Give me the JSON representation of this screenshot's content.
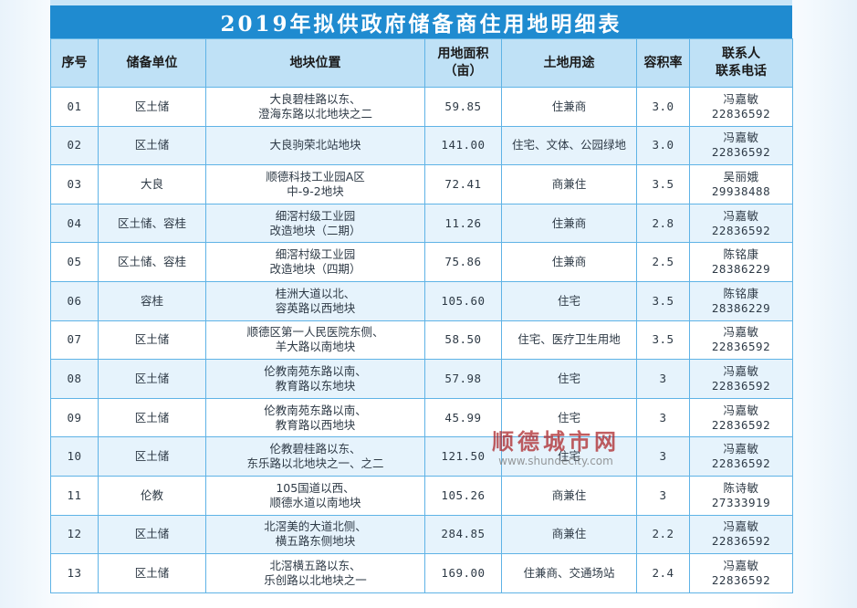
{
  "title": "2019年拟供政府储备商住用地明细表",
  "headers": {
    "seq": "序号",
    "unit": "储备单位",
    "location": "地块位置",
    "area_1": "用地面积",
    "area_2": "（亩）",
    "usage": "土地用途",
    "far": "容积率",
    "contact_1": "联系人",
    "contact_2": "联系电话"
  },
  "rows": [
    {
      "seq": "01",
      "unit": "区土储",
      "loc1": "大良碧桂路以东、",
      "loc2": "澄海东路以北地块之二",
      "area": "59.85",
      "usage": "住兼商",
      "far": "3.0",
      "c1": "冯嘉敏",
      "c2": "22836592"
    },
    {
      "seq": "02",
      "unit": "区土储",
      "loc1": "大良驹荣北站地块",
      "loc2": "",
      "area": "141.00",
      "usage": "住宅、文体、公园绿地",
      "far": "3.0",
      "c1": "冯嘉敏",
      "c2": "22836592"
    },
    {
      "seq": "03",
      "unit": "大良",
      "loc1": "顺德科技工业园A区",
      "loc2": "中-9-2地块",
      "area": "72.41",
      "usage": "商兼住",
      "far": "3.5",
      "c1": "吴丽娥",
      "c2": "29938488"
    },
    {
      "seq": "04",
      "unit": "区土储、容桂",
      "loc1": "细滘村级工业园",
      "loc2": "改造地块（二期）",
      "area": "11.26",
      "usage": "住兼商",
      "far": "2.8",
      "c1": "冯嘉敏",
      "c2": "22836592"
    },
    {
      "seq": "05",
      "unit": "区土储、容桂",
      "loc1": "细滘村级工业园",
      "loc2": "改造地块（四期）",
      "area": "75.86",
      "usage": "住兼商",
      "far": "2.5",
      "c1": "陈铭康",
      "c2": "28386229"
    },
    {
      "seq": "06",
      "unit": "容桂",
      "loc1": "桂洲大道以北、",
      "loc2": "容英路以西地块",
      "area": "105.60",
      "usage": "住宅",
      "far": "3.5",
      "c1": "陈铭康",
      "c2": "28386229"
    },
    {
      "seq": "07",
      "unit": "区土储",
      "loc1": "顺德区第一人民医院东侧、",
      "loc2": "羊大路以南地块",
      "area": "58.50",
      "usage": "住宅、医疗卫生用地",
      "far": "3.5",
      "c1": "冯嘉敏",
      "c2": "22836592"
    },
    {
      "seq": "08",
      "unit": "区土储",
      "loc1": "伦教南苑东路以南、",
      "loc2": "教育路以东地块",
      "area": "57.98",
      "usage": "住宅",
      "far": "3",
      "c1": "冯嘉敏",
      "c2": "22836592"
    },
    {
      "seq": "09",
      "unit": "区土储",
      "loc1": "伦教南苑东路以南、",
      "loc2": "教育路以西地块",
      "area": "45.99",
      "usage": "住宅",
      "far": "3",
      "c1": "冯嘉敏",
      "c2": "22836592"
    },
    {
      "seq": "10",
      "unit": "区土储",
      "loc1": "伦教碧桂路以东、",
      "loc2": "东乐路以北地块之一、之二",
      "area": "121.50",
      "usage": "住宅",
      "far": "3",
      "c1": "冯嘉敏",
      "c2": "22836592"
    },
    {
      "seq": "11",
      "unit": "伦教",
      "loc1": "105国道以西、",
      "loc2": "顺德水道以南地块",
      "area": "105.26",
      "usage": "商兼住",
      "far": "3",
      "c1": "陈诗敏",
      "c2": "27333919"
    },
    {
      "seq": "12",
      "unit": "区土储",
      "loc1": "北滘美的大道北侧、",
      "loc2": "横五路东侧地块",
      "area": "284.85",
      "usage": "商兼住",
      "far": "2.2",
      "c1": "冯嘉敏",
      "c2": "22836592"
    },
    {
      "seq": "13",
      "unit": "区土储",
      "loc1": "北滘横五路以东、",
      "loc2": "乐创路以北地块之一",
      "area": "169.00",
      "usage": "住兼商、交通场站",
      "far": "2.4",
      "c1": "冯嘉敏",
      "c2": "22836592"
    }
  ],
  "watermark": {
    "name": "顺德城市网",
    "url": "www.shundecity.com"
  }
}
